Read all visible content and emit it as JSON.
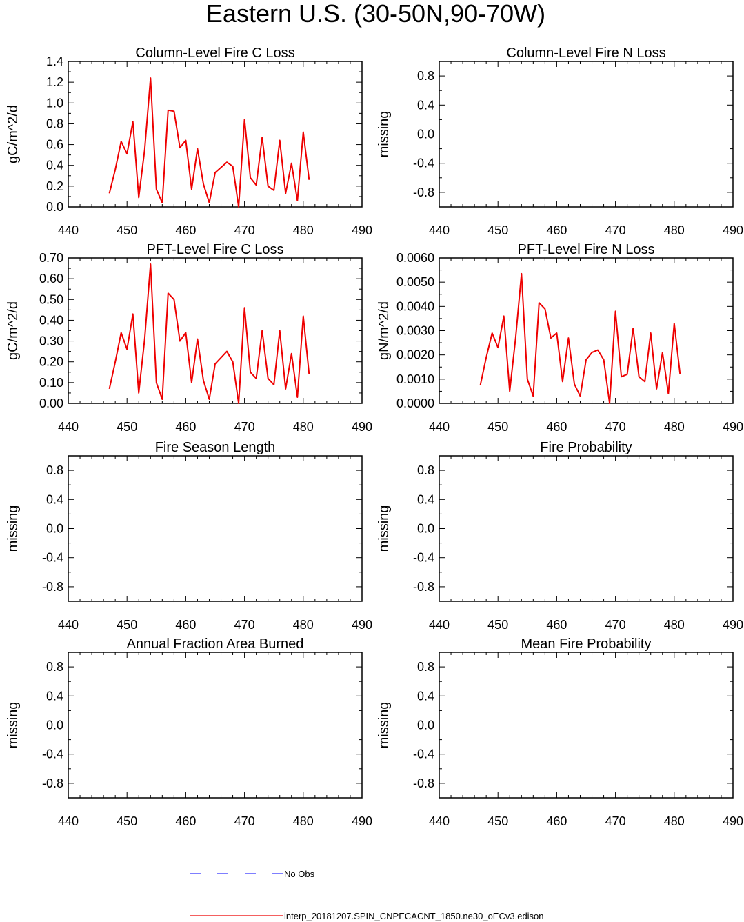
{
  "figure_title": "Eastern U.S. (30-50N,90-70W)",
  "legend": [
    {
      "label": "No Obs",
      "color": "#3333ff",
      "style": "dashed"
    },
    {
      "label": "interp_20181207.SPIN_CNPECACNT_1850.ne30_oECv3.edison",
      "color": "#ee0000",
      "style": "solid"
    }
  ],
  "colors": {
    "model_line": "#ee0000",
    "obs_line": "#3333ff",
    "axis": "#000000"
  },
  "chart_data": [
    {
      "type": "line",
      "title": "Column-Level Fire C Loss",
      "ylabel": "gC/m^2/d",
      "xlim": [
        440,
        490
      ],
      "ylim": [
        0,
        1.4
      ],
      "xticks": [
        "440",
        "450",
        "460",
        "470",
        "480",
        "490"
      ],
      "yticks": [
        {
          "value": 0.0,
          "label": "0.0"
        },
        {
          "value": 0.2,
          "label": "0.2"
        },
        {
          "value": 0.4,
          "label": "0.4"
        },
        {
          "value": 0.6,
          "label": "0.6"
        },
        {
          "value": 0.8,
          "label": "0.8"
        },
        {
          "value": 1.0,
          "label": "1.0"
        },
        {
          "value": 1.2,
          "label": "1.2"
        },
        {
          "value": 1.4,
          "label": "1.4"
        }
      ],
      "series": [
        {
          "x": [
            447,
            448,
            449,
            450,
            451,
            452,
            453,
            454,
            455,
            456,
            457,
            458,
            459,
            460,
            461,
            462,
            463,
            464,
            465,
            466,
            467,
            468,
            469,
            470,
            471,
            472,
            473,
            474,
            475,
            476,
            477,
            478,
            479,
            480,
            481
          ],
          "y": [
            0.13,
            0.36,
            0.63,
            0.51,
            0.82,
            0.09,
            0.55,
            1.24,
            0.17,
            0.04,
            0.93,
            0.92,
            0.57,
            0.64,
            0.17,
            0.56,
            0.22,
            0.04,
            0.33,
            0.38,
            0.43,
            0.39,
            0.0,
            0.84,
            0.28,
            0.21,
            0.67,
            0.2,
            0.16,
            0.64,
            0.13,
            0.42,
            0.06,
            0.72,
            0.26
          ]
        }
      ]
    },
    {
      "type": "line",
      "title": "Column-Level Fire N Loss",
      "ylabel": "missing",
      "xlim": [
        440,
        490
      ],
      "ylim": [
        -1,
        1
      ],
      "xticks": [
        "440",
        "450",
        "460",
        "470",
        "480",
        "490"
      ],
      "yticks": [
        {
          "value": -0.8,
          "label": "-0.8"
        },
        {
          "value": -0.4,
          "label": "-0.4"
        },
        {
          "value": 0.0,
          "label": "0.0"
        },
        {
          "value": 0.4,
          "label": "0.4"
        },
        {
          "value": 0.8,
          "label": "0.8"
        }
      ],
      "series": []
    },
    {
      "type": "line",
      "title": "PFT-Level Fire C Loss",
      "ylabel": "gC/m^2/d",
      "xlim": [
        440,
        490
      ],
      "ylim": [
        0,
        0.7
      ],
      "xticks": [
        "440",
        "450",
        "460",
        "470",
        "480",
        "490"
      ],
      "yticks": [
        {
          "value": 0.0,
          "label": "0.00"
        },
        {
          "value": 0.1,
          "label": "0.10"
        },
        {
          "value": 0.2,
          "label": "0.20"
        },
        {
          "value": 0.3,
          "label": "0.30"
        },
        {
          "value": 0.4,
          "label": "0.40"
        },
        {
          "value": 0.5,
          "label": "0.50"
        },
        {
          "value": 0.6,
          "label": "0.60"
        },
        {
          "value": 0.7,
          "label": "0.70"
        }
      ],
      "series": [
        {
          "x": [
            447,
            448,
            449,
            450,
            451,
            452,
            453,
            454,
            455,
            456,
            457,
            458,
            459,
            460,
            461,
            462,
            463,
            464,
            465,
            466,
            467,
            468,
            469,
            470,
            471,
            472,
            473,
            474,
            475,
            476,
            477,
            478,
            479,
            480,
            481
          ],
          "y": [
            0.07,
            0.2,
            0.34,
            0.26,
            0.43,
            0.05,
            0.31,
            0.67,
            0.1,
            0.02,
            0.53,
            0.5,
            0.3,
            0.34,
            0.1,
            0.31,
            0.11,
            0.02,
            0.19,
            0.22,
            0.25,
            0.2,
            0.0,
            0.46,
            0.15,
            0.12,
            0.35,
            0.12,
            0.09,
            0.35,
            0.07,
            0.24,
            0.03,
            0.42,
            0.14
          ]
        }
      ]
    },
    {
      "type": "line",
      "title": "PFT-Level Fire N Loss",
      "ylabel": "gN/m^2/d",
      "xlim": [
        440,
        490
      ],
      "ylim": [
        0,
        0.006
      ],
      "xticks": [
        "440",
        "450",
        "460",
        "470",
        "480",
        "490"
      ],
      "yticks": [
        {
          "value": 0.0,
          "label": "0.0000"
        },
        {
          "value": 0.001,
          "label": "0.0010"
        },
        {
          "value": 0.002,
          "label": "0.0020"
        },
        {
          "value": 0.003,
          "label": "0.0030"
        },
        {
          "value": 0.004,
          "label": "0.0040"
        },
        {
          "value": 0.005,
          "label": "0.0050"
        },
        {
          "value": 0.006,
          "label": "0.0060"
        }
      ],
      "series": [
        {
          "x": [
            447,
            448,
            449,
            450,
            451,
            452,
            453,
            454,
            455,
            456,
            457,
            458,
            459,
            460,
            461,
            462,
            463,
            464,
            465,
            466,
            467,
            468,
            469,
            470,
            471,
            472,
            473,
            474,
            475,
            476,
            477,
            478,
            479,
            480,
            481
          ],
          "y": [
            0.00075,
            0.0019,
            0.0029,
            0.0023,
            0.0036,
            0.0005,
            0.0027,
            0.00535,
            0.001,
            0.0003,
            0.00415,
            0.0039,
            0.0027,
            0.0029,
            0.0009,
            0.0027,
            0.0008,
            0.0003,
            0.0018,
            0.0021,
            0.0022,
            0.0018,
            0.0,
            0.0038,
            0.0011,
            0.0012,
            0.0031,
            0.0011,
            0.0009,
            0.0029,
            0.0006,
            0.0021,
            0.0004,
            0.0033,
            0.0012
          ]
        }
      ]
    },
    {
      "type": "line",
      "title": "Fire Season Length",
      "ylabel": "missing",
      "xlim": [
        440,
        490
      ],
      "ylim": [
        -1,
        1
      ],
      "xticks": [
        "440",
        "450",
        "460",
        "470",
        "480",
        "490"
      ],
      "yticks": [
        {
          "value": -0.8,
          "label": "-0.8"
        },
        {
          "value": -0.4,
          "label": "-0.4"
        },
        {
          "value": 0.0,
          "label": "0.0"
        },
        {
          "value": 0.4,
          "label": "0.4"
        },
        {
          "value": 0.8,
          "label": "0.8"
        }
      ],
      "series": []
    },
    {
      "type": "line",
      "title": "Fire Probability",
      "ylabel": "missing",
      "xlim": [
        440,
        490
      ],
      "ylim": [
        -1,
        1
      ],
      "xticks": [
        "440",
        "450",
        "460",
        "470",
        "480",
        "490"
      ],
      "yticks": [
        {
          "value": -0.8,
          "label": "-0.8"
        },
        {
          "value": -0.4,
          "label": "-0.4"
        },
        {
          "value": 0.0,
          "label": "0.0"
        },
        {
          "value": 0.4,
          "label": "0.4"
        },
        {
          "value": 0.8,
          "label": "0.8"
        }
      ],
      "series": []
    },
    {
      "type": "line",
      "title": "Annual Fraction Area Burned",
      "ylabel": "missing",
      "xlim": [
        440,
        490
      ],
      "ylim": [
        -1,
        1
      ],
      "xticks": [
        "440",
        "450",
        "460",
        "470",
        "480",
        "490"
      ],
      "yticks": [
        {
          "value": -0.8,
          "label": "-0.8"
        },
        {
          "value": -0.4,
          "label": "-0.4"
        },
        {
          "value": 0.0,
          "label": "0.0"
        },
        {
          "value": 0.4,
          "label": "0.4"
        },
        {
          "value": 0.8,
          "label": "0.8"
        }
      ],
      "series": []
    },
    {
      "type": "line",
      "title": "Mean Fire Probability",
      "ylabel": "missing",
      "xlim": [
        440,
        490
      ],
      "ylim": [
        -1,
        1
      ],
      "xticks": [
        "440",
        "450",
        "460",
        "470",
        "480",
        "490"
      ],
      "yticks": [
        {
          "value": -0.8,
          "label": "-0.8"
        },
        {
          "value": -0.4,
          "label": "-0.4"
        },
        {
          "value": 0.0,
          "label": "0.0"
        },
        {
          "value": 0.4,
          "label": "0.4"
        },
        {
          "value": 0.8,
          "label": "0.8"
        }
      ],
      "series": []
    }
  ]
}
